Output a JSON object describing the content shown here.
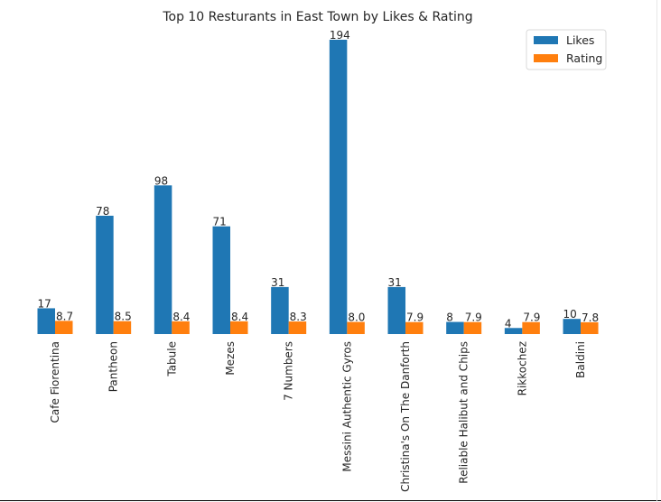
{
  "chart_data": {
    "type": "bar",
    "title": "Top 10 Resturants in East Town by Likes & Rating",
    "xlabel": "",
    "ylabel": "",
    "categories": [
      "Cafe Fiorentina",
      "Pantheon",
      "Tabule",
      "Mezes",
      "7 Numbers",
      "Messini Authentic Gyros",
      "Christina's On The Danforth",
      "Reliable Halibut and Chips",
      "Rikkochez",
      "Baldini"
    ],
    "series": [
      {
        "name": "Likes",
        "color": "#1f77b4",
        "values": [
          17,
          78,
          98,
          71,
          31,
          194,
          31,
          8,
          4,
          10
        ],
        "labels": [
          "17",
          "78",
          "98",
          "71",
          "31",
          "194",
          "31",
          "8",
          "4",
          "10"
        ]
      },
      {
        "name": "Rating",
        "color": "#ff7f0e",
        "values": [
          8.7,
          8.5,
          8.4,
          8.4,
          8.3,
          8.0,
          7.9,
          7.9,
          7.9,
          7.8
        ],
        "labels": [
          "8.7",
          "8.5",
          "8.4",
          "8.4",
          "8.3",
          "8.0",
          "7.9",
          "7.9",
          "7.9",
          "7.8"
        ]
      }
    ],
    "ylim": [
      0,
      194
    ],
    "grid": false,
    "legend": "top-right"
  }
}
